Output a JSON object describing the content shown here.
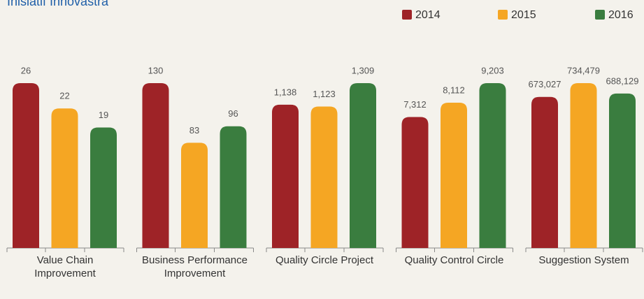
{
  "chart_data": {
    "type": "bar",
    "title": "Inisiatif Innovastra",
    "categories": [
      "Value Chain Improvement",
      "Business Performance Improvement",
      "Quality Circle Project",
      "Quality Control Circle",
      "Suggestion System"
    ],
    "series": [
      {
        "name": "2014",
        "color": "#9e2327",
        "values": [
          26,
          130,
          1138,
          7312,
          673027
        ],
        "value_labels": [
          "26",
          "130",
          "1,138",
          "7,312",
          "673,027"
        ]
      },
      {
        "name": "2015",
        "color": "#f5a623",
        "values": [
          22,
          83,
          1123,
          8112,
          734479
        ],
        "value_labels": [
          "22",
          "83",
          "1,123",
          "8,112",
          "734,479"
        ]
      },
      {
        "name": "2016",
        "color": "#3a7d3f",
        "values": [
          19,
          96,
          1309,
          9203,
          688129
        ],
        "value_labels": [
          "19",
          "96",
          "1,309",
          "9,203",
          "688,129"
        ]
      }
    ]
  }
}
